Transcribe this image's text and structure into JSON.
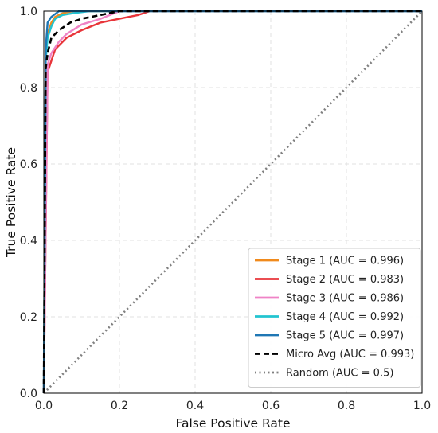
{
  "chart_data": {
    "type": "line",
    "title": "",
    "xlabel": "False Positive Rate",
    "ylabel": "True Positive Rate",
    "xlim": [
      0.0,
      1.0
    ],
    "ylim": [
      0.0,
      1.0
    ],
    "xticks": [
      "0.0",
      "0.2",
      "0.4",
      "0.6",
      "0.8",
      "1.0"
    ],
    "yticks": [
      "0.0",
      "0.2",
      "0.4",
      "0.6",
      "0.8",
      "1.0"
    ],
    "grid": true,
    "legend_position": "lower-right",
    "series": [
      {
        "name": "Stage 1 (AUC = 0.996)",
        "color": "#f08a1c",
        "style": "solid",
        "x": [
          0.0,
          0.005,
          0.01,
          0.02,
          0.03,
          0.05,
          0.08,
          1.0
        ],
        "y": [
          0.0,
          0.88,
          0.94,
          0.97,
          0.985,
          0.995,
          1.0,
          1.0
        ]
      },
      {
        "name": "Stage 2 (AUC = 0.983)",
        "color": "#e8353a",
        "style": "solid",
        "x": [
          0.0,
          0.01,
          0.02,
          0.03,
          0.06,
          0.1,
          0.15,
          0.2,
          0.25,
          0.28,
          1.0
        ],
        "y": [
          0.0,
          0.84,
          0.87,
          0.9,
          0.93,
          0.95,
          0.97,
          0.98,
          0.99,
          1.0,
          1.0
        ]
      },
      {
        "name": "Stage 3 (AUC = 0.986)",
        "color": "#ef83c6",
        "style": "solid",
        "x": [
          0.0,
          0.01,
          0.02,
          0.04,
          0.06,
          0.1,
          0.15,
          0.2,
          1.0
        ],
        "y": [
          0.0,
          0.86,
          0.89,
          0.92,
          0.94,
          0.965,
          0.98,
          1.0,
          1.0
        ]
      },
      {
        "name": "Stage 4 (AUC = 0.992)",
        "color": "#22c4d0",
        "style": "solid",
        "x": [
          0.0,
          0.005,
          0.01,
          0.02,
          0.03,
          0.05,
          0.08,
          0.12,
          1.0
        ],
        "y": [
          0.0,
          0.87,
          0.93,
          0.96,
          0.98,
          0.99,
          0.995,
          1.0,
          1.0
        ]
      },
      {
        "name": "Stage 5 (AUC = 0.997)",
        "color": "#1f77b4",
        "style": "solid",
        "x": [
          0.0,
          0.005,
          0.01,
          0.02,
          0.04,
          0.06,
          1.0
        ],
        "y": [
          0.0,
          0.9,
          0.97,
          0.985,
          1.0,
          1.0,
          1.0
        ]
      },
      {
        "name": "Micro Avg (AUC = 0.993)",
        "color": "#000000",
        "style": "dashed",
        "x": [
          0.0,
          0.005,
          0.01,
          0.02,
          0.04,
          0.07,
          0.1,
          0.15,
          0.2,
          1.0
        ],
        "y": [
          0.0,
          0.85,
          0.89,
          0.93,
          0.95,
          0.97,
          0.98,
          0.99,
          1.0,
          1.0
        ]
      },
      {
        "name": "Random (AUC = 0.5)",
        "color": "#808080",
        "style": "dotted",
        "x": [
          0.0,
          1.0
        ],
        "y": [
          0.0,
          1.0
        ]
      }
    ]
  }
}
